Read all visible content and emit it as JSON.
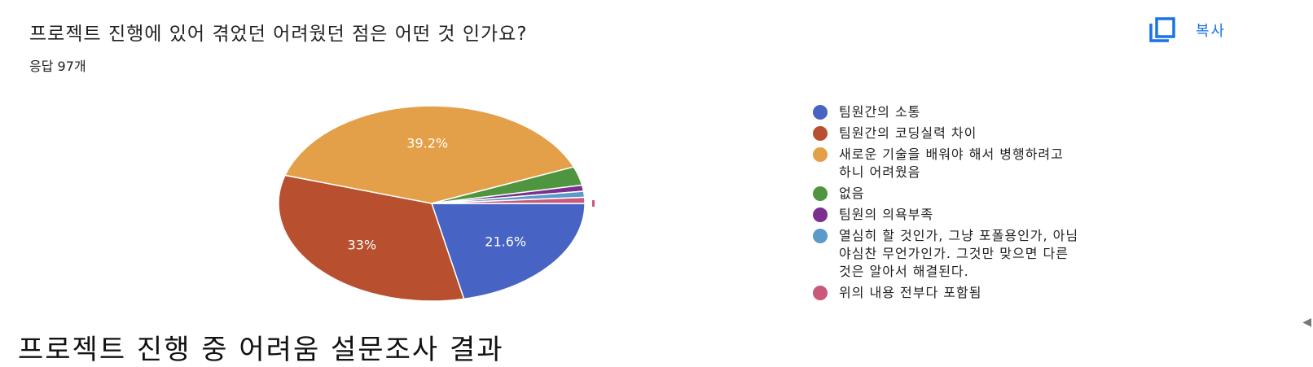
{
  "question": "프로젝트 진행에 있어 겪었던 어려웠던 점은 어떤 것 인가요?",
  "response_count": "응답 97개",
  "copy_label": "복사",
  "caption": "프로젝트 진행 중 어려움 설문조사 결과",
  "chart_data": {
    "type": "pie",
    "title": "프로젝트 진행에 있어 겪었던 어려웠던 점은 어떤 것 인가요?",
    "legend_position": "right",
    "slices": [
      {
        "label": "팀원간의 소통",
        "value": 21.6,
        "display": "21.6%",
        "color": "#4763c4"
      },
      {
        "label": "팀원간의 코딩실력 차이",
        "value": 33.0,
        "display": "33%",
        "color": "#b84f2e"
      },
      {
        "label": "새로운 기술을 배워야 해서 병행하려고\n하니 어려웠음",
        "value": 39.2,
        "display": "39.2%",
        "color": "#e3a048"
      },
      {
        "label": "없음",
        "value": 3.1,
        "display": "",
        "color": "#4f9540"
      },
      {
        "label": "팀원의 의욕부족",
        "value": 1.0,
        "display": "",
        "color": "#7b2f8f"
      },
      {
        "label": "열심히 할 것인가, 그냥 포폴용인가, 아님\n야심찬 무언가인가. 그것만 맞으면 다른\n것은 알아서 해결된다.",
        "value": 1.0,
        "display": "",
        "color": "#5b9bc9"
      },
      {
        "label": "위의 내용 전부다 포함됨",
        "value": 1.0,
        "display": "",
        "color": "#c9587a"
      }
    ]
  }
}
